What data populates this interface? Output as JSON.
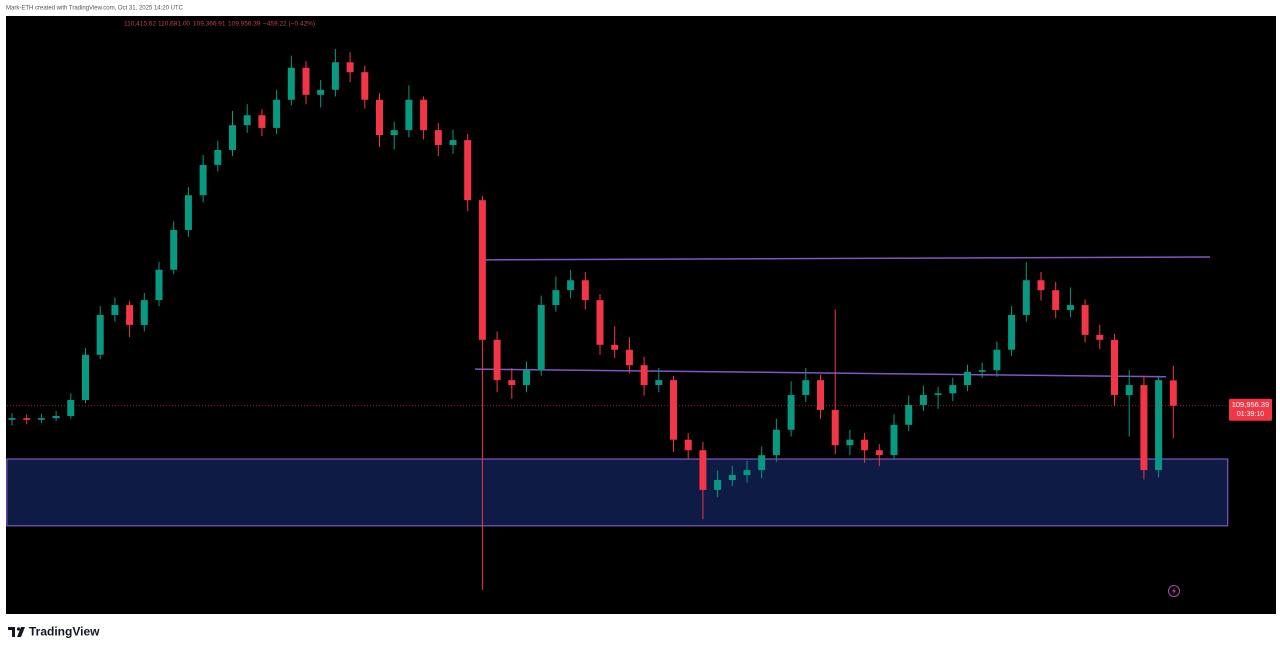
{
  "header": {
    "credit": "Mark-ETH created with TradingView.com, Oct 31, 2025 14:20 UTC",
    "ohlc": [
      "110,415.62",
      "110,681.00",
      "109,366.91",
      "109,956.39",
      "−459.22 (−0.42%)"
    ]
  },
  "chart_data": {
    "type": "candlestick",
    "up_color": "#089981",
    "down_color": "#f23645",
    "ylim": [
      106200,
      117000
    ],
    "open": [
      109700,
      109730,
      109700,
      109730,
      109770,
      110060,
      110880,
      111600,
      111780,
      111420,
      111870,
      112420,
      113140,
      113770,
      114320,
      114590,
      115040,
      115220,
      114990,
      115500,
      116080,
      115590,
      115680,
      116180,
      116000,
      115500,
      114860,
      114950,
      115500,
      114950,
      114680,
      114770,
      113680,
      111150,
      110420,
      110330,
      110600,
      111780,
      112050,
      112230,
      111870,
      111060,
      110970,
      110690,
      110330,
      110420,
      109340,
      109150,
      108430,
      108610,
      108700,
      108790,
      109060,
      109520,
      110150,
      110420,
      109880,
      109240,
      109340,
      109150,
      109060,
      109610,
      109970,
      110150,
      110180,
      110330,
      110570,
      110600,
      110970,
      111600,
      112230,
      112050,
      111690,
      111780,
      111240,
      111150,
      110150,
      110330,
      108790,
      110415.62
    ],
    "high": [
      109820,
      109800,
      109810,
      109860,
      110180,
      111000,
      111760,
      111920,
      111860,
      112000,
      112560,
      113300,
      113920,
      114500,
      114760,
      115300,
      115420,
      115330,
      115680,
      116300,
      116200,
      115860,
      116420,
      116360,
      116120,
      115620,
      115100,
      115760,
      115560,
      115080,
      114960,
      114880,
      113760,
      111300,
      110640,
      110760,
      111950,
      112300,
      112420,
      112380,
      111980,
      111400,
      111200,
      110840,
      110640,
      110500,
      109460,
      109300,
      108780,
      108860,
      108960,
      109220,
      109720,
      110400,
      110640,
      110520,
      111700,
      109520,
      109460,
      109260,
      109800,
      110140,
      110320,
      110300,
      110460,
      110700,
      110740,
      111120,
      111760,
      112560,
      112380,
      112200,
      112100,
      111880,
      111420,
      111260,
      110600,
      110500,
      110500,
      110681
    ],
    "low": [
      109600,
      109620,
      109640,
      109680,
      109720,
      110000,
      110800,
      111480,
      111200,
      111300,
      111760,
      112340,
      113020,
      113640,
      114200,
      114480,
      114900,
      114840,
      114880,
      115400,
      115420,
      115360,
      115560,
      115820,
      115340,
      114640,
      114600,
      114820,
      114780,
      114480,
      114520,
      113480,
      106620,
      110200,
      110080,
      110200,
      110500,
      111660,
      111900,
      111700,
      110880,
      110820,
      110540,
      110140,
      110200,
      109120,
      108980,
      107900,
      108300,
      108500,
      108560,
      108640,
      108940,
      109400,
      110020,
      109720,
      109080,
      109060,
      108920,
      108860,
      108980,
      109500,
      109860,
      109900,
      110040,
      110220,
      110460,
      110480,
      110860,
      111480,
      111860,
      111540,
      111560,
      111100,
      110980,
      109960,
      109400,
      108620,
      108660,
      109366.91
    ],
    "close": [
      109730,
      109700,
      109730,
      109770,
      110060,
      110880,
      111600,
      111780,
      111420,
      111870,
      112420,
      113140,
      113770,
      114320,
      114590,
      115040,
      115220,
      114990,
      115500,
      116080,
      115590,
      115680,
      116180,
      116000,
      115500,
      114860,
      114950,
      115500,
      114950,
      114680,
      114770,
      113680,
      111150,
      110420,
      110330,
      110600,
      111780,
      112050,
      112230,
      111870,
      111060,
      110970,
      110690,
      110330,
      110420,
      109340,
      109150,
      108430,
      108610,
      108700,
      108790,
      109060,
      109520,
      110150,
      110420,
      109880,
      109240,
      109340,
      109150,
      109060,
      109610,
      109970,
      110150,
      110180,
      110330,
      110570,
      110600,
      110970,
      111600,
      112230,
      112050,
      111690,
      111780,
      111240,
      111150,
      110150,
      110330,
      108790,
      110420,
      109956.39
    ],
    "last_price_label": "109,956.39",
    "countdown": "01:39:10",
    "level_color": "#7e57c2",
    "zone_fill": "#0d1b45",
    "levels": [
      {
        "start_index": 32,
        "end_index": 81.5,
        "price_start": 112600,
        "price_end": 112650
      },
      {
        "start_index": 31.5,
        "end_index": 78.5,
        "price_start": 110620,
        "price_end": 110480
      }
    ],
    "zone": {
      "start_index": -0.35,
      "end_index": 82.7,
      "top": 108990,
      "bottom": 107780
    }
  },
  "footer": {
    "logo": "TradingView"
  }
}
